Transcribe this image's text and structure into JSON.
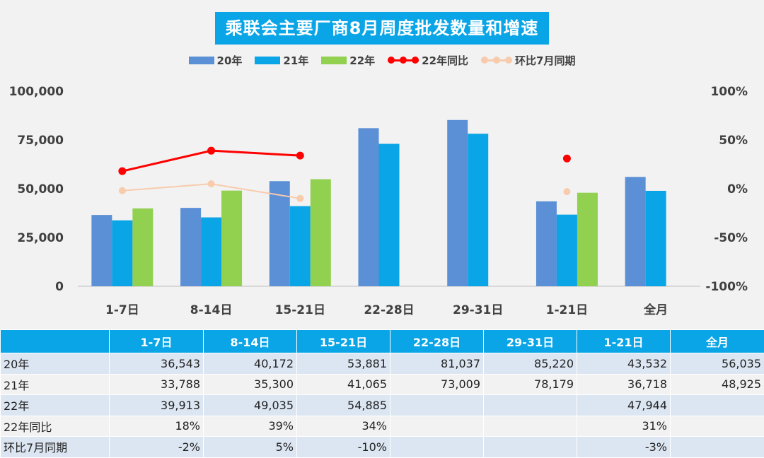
{
  "chart_data": {
    "type": "bar",
    "title": "乘联会主要厂商8月周度批发数量和增速",
    "categories": [
      "1-7日",
      "8-14日",
      "15-21日",
      "22-28日",
      "29-31日",
      "1-21日",
      "全月"
    ],
    "series": [
      {
        "name": "20年",
        "type": "bar",
        "color": "#5b8fd6",
        "values": [
          36543,
          40172,
          53881,
          81037,
          85220,
          43532,
          56035
        ]
      },
      {
        "name": "21年",
        "type": "bar",
        "color": "#0aa5e6",
        "values": [
          33788,
          35300,
          41065,
          73009,
          78179,
          36718,
          48925
        ]
      },
      {
        "name": "22年",
        "type": "bar",
        "color": "#92d050",
        "values": [
          39913,
          49035,
          54885,
          null,
          null,
          47944,
          null
        ]
      },
      {
        "name": "22年同比",
        "type": "line",
        "axis": "right",
        "color": "#ff0000",
        "values": [
          18,
          39,
          34,
          null,
          null,
          31,
          null
        ]
      },
      {
        "name": "环比7月同期",
        "type": "line",
        "axis": "right",
        "color": "#f8cbad",
        "values": [
          -2,
          5,
          -10,
          null,
          null,
          -3,
          null
        ]
      }
    ],
    "y_left": {
      "ylim": [
        0,
        100000
      ],
      "ticks": [
        "0",
        "25,000",
        "50,000",
        "75,000",
        "100,000"
      ],
      "tick_values": [
        0,
        25000,
        50000,
        75000,
        100000
      ]
    },
    "y_right": {
      "ylim": [
        -100,
        100
      ],
      "unit": "%",
      "ticks": [
        "-100%",
        "-50%",
        "0%",
        "50%",
        "100%"
      ],
      "tick_values": [
        -100,
        -50,
        0,
        50,
        100
      ]
    },
    "legend_position": "top-center",
    "grid": false
  },
  "table": {
    "columns": [
      "",
      "1-7日",
      "8-14日",
      "15-21日",
      "22-28日",
      "29-31日",
      "1-21日",
      "全月"
    ],
    "rows": [
      {
        "label": "20年",
        "cells": [
          "36,543",
          "40,172",
          "53,881",
          "81,037",
          "85,220",
          "43,532",
          "56,035"
        ]
      },
      {
        "label": "21年",
        "cells": [
          "33,788",
          "35,300",
          "41,065",
          "73,009",
          "78,179",
          "36,718",
          "48,925"
        ]
      },
      {
        "label": "22年",
        "cells": [
          "39,913",
          "49,035",
          "54,885",
          "",
          "",
          "47,944",
          ""
        ]
      },
      {
        "label": "22年同比",
        "cells": [
          "18%",
          "39%",
          "34%",
          "",
          "",
          "31%",
          ""
        ]
      },
      {
        "label": "环比7月同期",
        "cells": [
          "-2%",
          "5%",
          "-10%",
          "",
          "",
          "-3%",
          ""
        ]
      }
    ]
  }
}
